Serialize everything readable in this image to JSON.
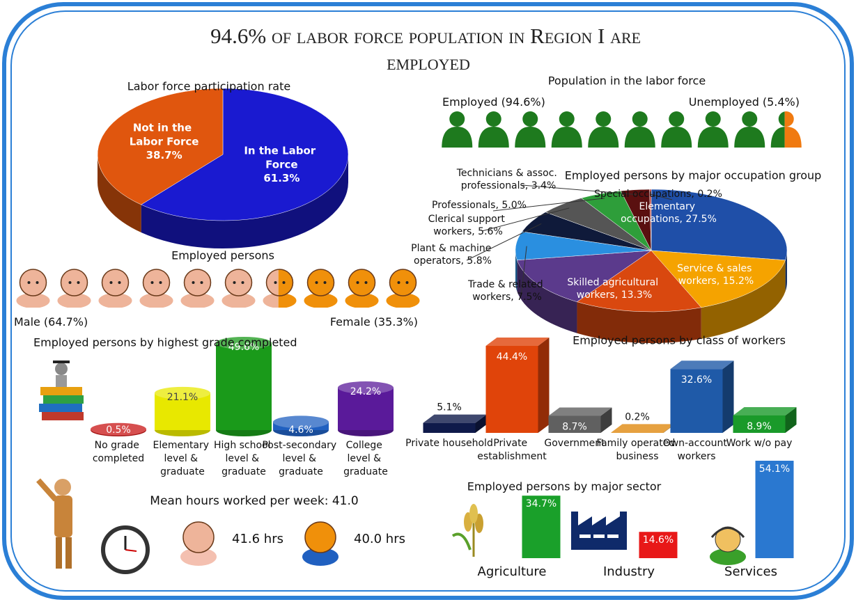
{
  "header": {
    "title": "94.6% of labor force population in Region I are employed"
  },
  "chart_data": [
    {
      "type": "pie",
      "title": "Labor force participation rate",
      "categories": [
        "In the Labor Force",
        "Not in the Labor Force"
      ],
      "values": [
        61.3,
        38.7
      ],
      "value_labels": [
        "61.3%",
        "38.7%"
      ],
      "colors": [
        "#1a1ad0",
        "#e0560e"
      ]
    },
    {
      "type": "pictogram",
      "title": "Population in the labor force",
      "categories": [
        "Employed",
        "Unemployed"
      ],
      "values": [
        94.6,
        5.4
      ],
      "value_labels": [
        "(94.6%)",
        "(5.4%)"
      ],
      "colors": [
        "#1e7a1e",
        "#f07a10"
      ]
    },
    {
      "type": "pie",
      "title": "Employed persons by major occupation group",
      "values": [
        27.5,
        16.5,
        15.2,
        13.3,
        7.5,
        5.8,
        5.6,
        5.0,
        3.4,
        0.2
      ],
      "value_labels": [
        "Elementary occupations, 27.5%",
        null,
        "Service & sales workers, 15.2%",
        "Skilled agricultural workers, 13.3%",
        "Trade & related workers, 7.5%",
        "Plant & machine operators, 5.8%",
        "Clerical support workers, 5.6%",
        "Professionals, 5.0%",
        "Technicians & assoc. professionals, 3.4%",
        "Special occupations, 0.2%"
      ],
      "colors": [
        "#1f4fa8",
        "#f5a300",
        "#d9480f",
        "#5b3a8c",
        "#2a8fe0",
        "#0f1a3a",
        "#555555",
        "#2e9e3a",
        "#5a1010",
        "#c0392b"
      ]
    },
    {
      "type": "pictogram",
      "title": "Employed persons",
      "categories": [
        "Male",
        "Female"
      ],
      "values": [
        64.7,
        35.3
      ],
      "value_labels": [
        "(64.7%)",
        "(35.3%)"
      ],
      "colors": [
        "#eeb49a",
        "#f0900a"
      ]
    },
    {
      "type": "bar",
      "title": "Employed persons by highest grade completed",
      "categories": [
        "No grade completed",
        "Elementary level & graduate",
        "High school level & graduate",
        "Post-secondary level & graduate",
        "College level & graduate"
      ],
      "values": [
        0.5,
        21.1,
        49.6,
        4.6,
        24.2
      ],
      "value_labels": [
        "0.5%",
        "21.1%",
        "49.6%",
        "4.6%",
        "24.2%"
      ],
      "colors": [
        "#c81414",
        "#e8e800",
        "#1a9a1a",
        "#2060c0",
        "#5a1a9a"
      ]
    },
    {
      "type": "bar",
      "title": "Employed persons by class of workers",
      "categories": [
        "Private household",
        "Private establishment",
        "Government",
        "Family operated business",
        "Own-account workers",
        "Work w/o pay"
      ],
      "values": [
        5.1,
        44.4,
        8.7,
        0.2,
        32.6,
        8.9
      ],
      "value_labels": [
        "5.1%",
        "44.4%",
        "8.7%",
        "0.2%",
        "32.6%",
        "8.9%"
      ],
      "colors": [
        "#0f1a4a",
        "#e0440a",
        "#606060",
        "#e08a10",
        "#1f5aa8",
        "#1a9a2a"
      ]
    },
    {
      "type": "bar",
      "title": "Employed persons by major sector",
      "categories": [
        "Agriculture",
        "Industry",
        "Services"
      ],
      "values": [
        34.7,
        14.6,
        54.1
      ],
      "value_labels": [
        "34.7%",
        "14.6%",
        "54.1%"
      ],
      "colors": [
        "#1aa02a",
        "#e81818",
        "#2a78d0"
      ]
    }
  ],
  "hours": {
    "title": "Mean hours worked per week: 41.0",
    "male": "41.6 hrs",
    "female": "40.0 hrs"
  }
}
